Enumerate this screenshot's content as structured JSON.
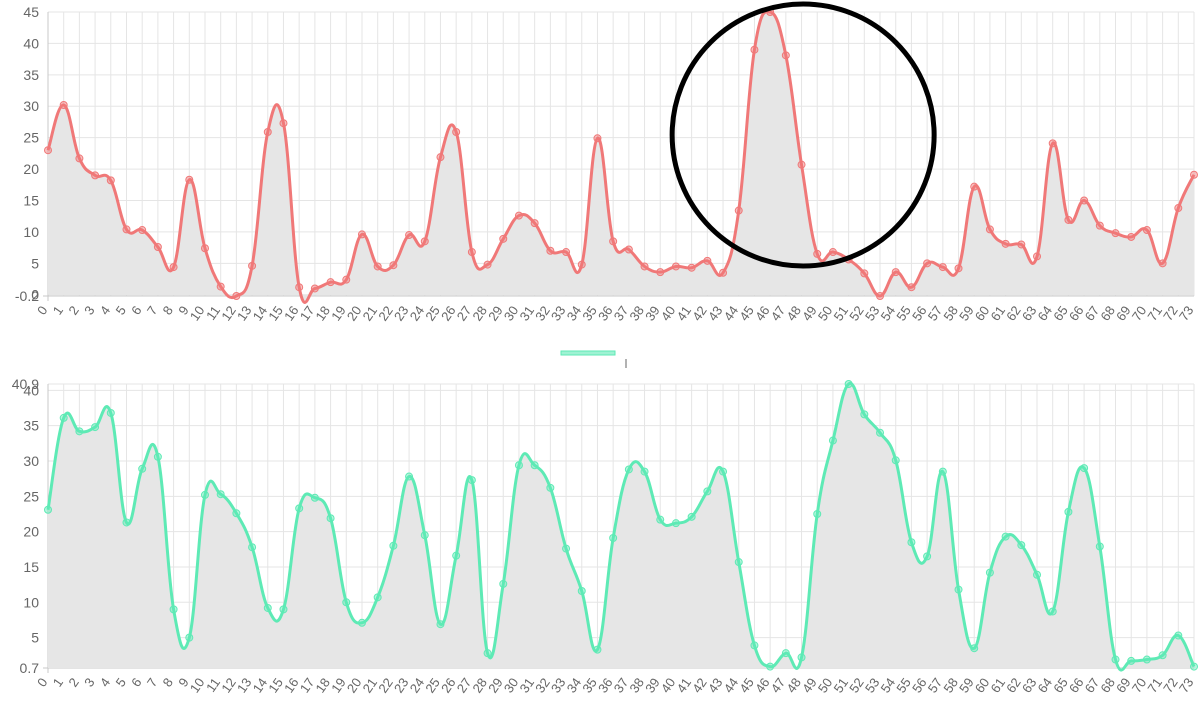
{
  "chart_data": [
    {
      "type": "area",
      "smooth": true,
      "x": [
        "0",
        "1",
        "2",
        "3",
        "4",
        "5",
        "6",
        "7",
        "8",
        "9",
        "10",
        "11",
        "12",
        "13",
        "14",
        "15",
        "16",
        "17",
        "18",
        "19",
        "20",
        "21",
        "22",
        "23",
        "24",
        "25",
        "26",
        "27",
        "28",
        "29",
        "30",
        "31",
        "32",
        "33",
        "34",
        "35",
        "36",
        "37",
        "38",
        "39",
        "40",
        "41",
        "42",
        "43",
        "44",
        "45",
        "46",
        "47",
        "48",
        "49",
        "50",
        "51",
        "52",
        "53",
        "54",
        "55",
        "56",
        "57",
        "58",
        "59",
        "60",
        "61",
        "62",
        "63",
        "64",
        "65",
        "66",
        "67",
        "68",
        "69",
        "70",
        "71",
        "72",
        "73"
      ],
      "series": [
        {
          "values": [
            23,
            30.2,
            21.7,
            19,
            18.2,
            10.4,
            10.3,
            7.6,
            4.4,
            18.3,
            7.4,
            1.3,
            -0.2,
            4.6,
            25.9,
            27.3,
            1.2,
            1,
            2,
            2.4,
            9.6,
            4.5,
            4.7,
            9.5,
            8.5,
            21.9,
            25.9,
            6.8,
            4.8,
            8.9,
            12.6,
            11.4,
            7,
            6.8,
            4.8,
            24.9,
            8.5,
            7.2,
            4.5,
            3.6,
            4.5,
            4.3,
            5.4,
            3.5,
            13.4,
            39,
            45,
            38.1,
            20.7,
            6.5,
            6.8,
            5.6,
            3.4,
            -0.2,
            3.6,
            1.2,
            5,
            4.4,
            4.2,
            17.2,
            10.4,
            8.1,
            8,
            6.1,
            24.1,
            11.9,
            15,
            11,
            9.8,
            9.2,
            10.3,
            5,
            13.8,
            19.1
          ],
          "color": "#f07878"
        }
      ],
      "y_ticks": [
        "-0.2",
        "0",
        "5",
        "10",
        "15",
        "20",
        "25",
        "30",
        "35",
        "40",
        "45"
      ],
      "ylim": [
        -0.2,
        45
      ],
      "grid": true,
      "fill": "#e6e6e6",
      "annotation": {
        "shape": "circle",
        "around_x": "46"
      }
    },
    {
      "type": "area",
      "smooth": true,
      "x": [
        "0",
        "1",
        "2",
        "3",
        "4",
        "5",
        "6",
        "7",
        "8",
        "9",
        "10",
        "11",
        "12",
        "13",
        "14",
        "15",
        "16",
        "17",
        "18",
        "19",
        "20",
        "21",
        "22",
        "23",
        "24",
        "25",
        "26",
        "27",
        "28",
        "29",
        "30",
        "31",
        "32",
        "33",
        "34",
        "35",
        "36",
        "37",
        "38",
        "39",
        "40",
        "41",
        "42",
        "43",
        "44",
        "45",
        "46",
        "47",
        "48",
        "49",
        "50",
        "51",
        "52",
        "53",
        "54",
        "55",
        "56",
        "57",
        "58",
        "59",
        "60",
        "61",
        "62",
        "63",
        "64",
        "65",
        "66",
        "67",
        "68",
        "69",
        "70",
        "71",
        "72",
        "73"
      ],
      "series": [
        {
          "values": [
            23.1,
            36.1,
            34.2,
            34.8,
            36.8,
            21.3,
            28.9,
            30.6,
            9,
            5,
            25.2,
            25.3,
            22.6,
            17.8,
            9.2,
            9,
            23.3,
            24.8,
            21.9,
            10,
            7.1,
            10.7,
            18,
            27.8,
            19.5,
            6.9,
            16.6,
            27.3,
            2.8,
            12.6,
            29.4,
            29.4,
            26.2,
            17.6,
            11.6,
            3.3,
            19.1,
            28.8,
            28.5,
            21.7,
            21.2,
            22.1,
            25.7,
            28.5,
            15.7,
            3.9,
            0.9,
            2.8,
            2.2,
            22.5,
            32.9,
            40.9,
            36.6,
            34,
            30.1,
            18.5,
            16.5,
            28.5,
            11.8,
            3.5,
            14.2,
            19.3,
            18.1,
            13.9,
            8.7,
            22.8,
            29,
            17.9,
            1.9,
            1.7,
            1.9,
            2.5,
            5.3,
            0.9
          ],
          "color": "#5eeab5"
        }
      ],
      "y_ticks": [
        "0.7",
        "5",
        "10",
        "15",
        "20",
        "25",
        "30",
        "35",
        "40",
        "40.9"
      ],
      "ylim": [
        0.7,
        40.9
      ],
      "grid": true,
      "fill": "#e6e6e6"
    }
  ],
  "legend": {
    "placement": "center",
    "swatch_color": "#5eeab5"
  }
}
